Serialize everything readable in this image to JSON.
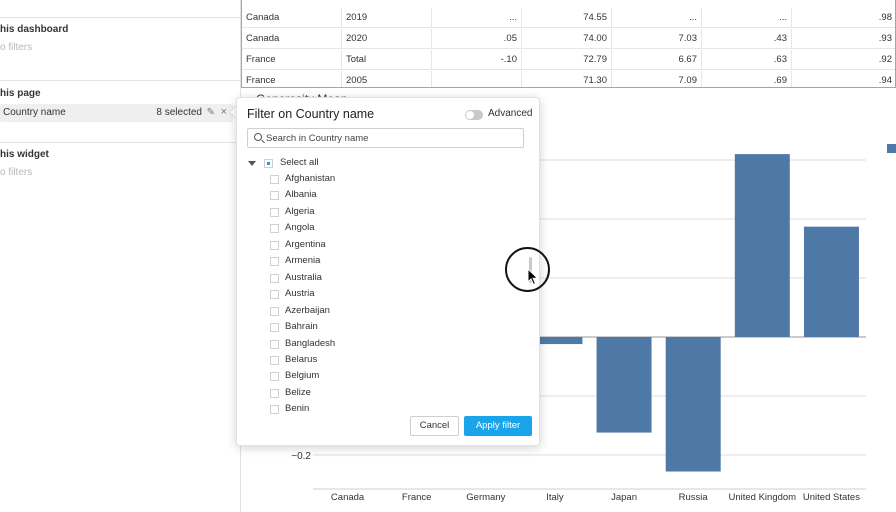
{
  "sidebar": {
    "dashboard_heading": "his dashboard",
    "dashboard_empty": "o filters",
    "page_heading": "his page",
    "page_filter": {
      "name": "Country name",
      "count": "8 selected"
    },
    "widget_heading": "his widget",
    "widget_empty": "o filters"
  },
  "table": {
    "rows": [
      [
        "Canada",
        "2019",
        "...",
        "74.55",
        "...",
        "...",
        ".98"
      ],
      [
        "Canada",
        "2020",
        ".05",
        "74.00",
        "7.03",
        ".43",
        ".93"
      ],
      [
        "France",
        "Total",
        "-.10",
        "72.79",
        "6.67",
        ".63",
        ".92"
      ],
      [
        "France",
        "2005",
        "",
        "71.30",
        "7.09",
        ".69",
        ".94"
      ]
    ]
  },
  "chart": {
    "title": "Generosity Mean",
    "legend_color": "#4e79a7"
  },
  "chart_data": {
    "type": "bar",
    "title": "Generosity Mean",
    "categories": [
      "Canada",
      "France",
      "Germany",
      "Italy",
      "Japan",
      "Russia",
      "United Kingdom",
      "United States"
    ],
    "values": [
      null,
      null,
      null,
      -0.012,
      -0.162,
      -0.228,
      0.31,
      0.187
    ],
    "ytick_labels": [
      "−0.2"
    ],
    "ylim": [
      -0.26,
      0.3
    ],
    "grid": true,
    "bar_color": "#4e79a7"
  },
  "popover": {
    "title": "Filter on Country name",
    "advanced_label": "Advanced",
    "search_placeholder": "Search in Country name",
    "select_all": "Select all",
    "countries": [
      "Afghanistan",
      "Albania",
      "Algeria",
      "Angola",
      "Argentina",
      "Armenia",
      "Australia",
      "Austria",
      "Azerbaijan",
      "Bahrain",
      "Bangladesh",
      "Belarus",
      "Belgium",
      "Belize",
      "Benin"
    ],
    "cancel": "Cancel",
    "apply": "Apply filter",
    "accent": "#1aa4ea"
  }
}
